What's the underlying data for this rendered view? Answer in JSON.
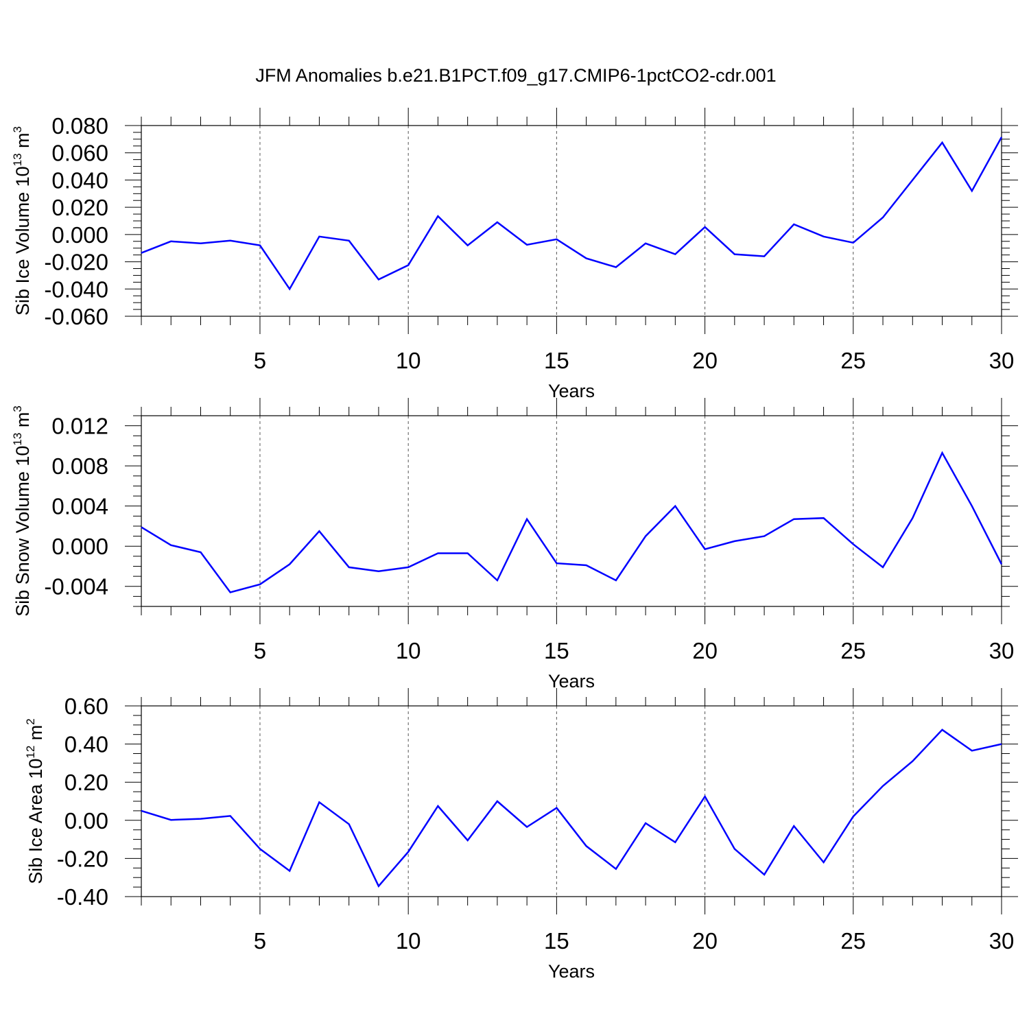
{
  "figure": {
    "title": "JFM Anomalies b.e21.B1PCT.f09_g17.CMIP6-1pctCO2-cdr.001"
  },
  "colors": {
    "line": "#0000ff",
    "axis": "#000000",
    "grid": "#555555"
  },
  "chart_data": [
    {
      "type": "line",
      "title": "JFM Anomalies b.e21.B1PCT.f09_g17.CMIP6-1pctCO2-cdr.001",
      "xlabel": "Years",
      "ylabel": {
        "text": "Sib Ice Volume 10",
        "sup": "13",
        "unit": " m",
        "unit_sup": "3"
      },
      "xlim": [
        1,
        30
      ],
      "ylim": [
        -0.06,
        0.08
      ],
      "xticks": [
        5,
        10,
        15,
        20,
        25,
        30
      ],
      "xtick_labels": [
        "5",
        "10",
        "15",
        "20",
        "25",
        "30"
      ],
      "yticks": [
        -0.06,
        -0.04,
        -0.02,
        0.0,
        0.02,
        0.04,
        0.06,
        0.08
      ],
      "ytick_labels": [
        "-0.060",
        "-0.040",
        "-0.020",
        "0.000",
        "0.020",
        "0.040",
        "0.060",
        "0.080"
      ],
      "yminor_step": 0.005,
      "grid": "vertical-dashed-at-major-x",
      "x": [
        1,
        2,
        3,
        4,
        5,
        6,
        7,
        8,
        9,
        10,
        11,
        12,
        13,
        14,
        15,
        16,
        17,
        18,
        19,
        20,
        21,
        22,
        23,
        24,
        25,
        26,
        27,
        28,
        29,
        30
      ],
      "series": [
        {
          "name": "Sib Ice Volume",
          "values": [
            -0.0135,
            -0.005,
            -0.0065,
            -0.0045,
            -0.008,
            -0.04,
            -0.0015,
            -0.0045,
            -0.033,
            -0.0225,
            0.0135,
            -0.008,
            0.009,
            -0.0075,
            -0.0035,
            -0.0175,
            -0.024,
            -0.0065,
            -0.0145,
            0.0055,
            -0.0145,
            -0.016,
            0.0075,
            -0.0015,
            -0.006,
            0.0125,
            0.04,
            0.0675,
            0.032,
            0.0715
          ]
        }
      ]
    },
    {
      "type": "line",
      "xlabel": "Years",
      "ylabel": {
        "text": "Sib Snow Volume 10",
        "sup": "13",
        "unit": " m",
        "unit_sup": "3"
      },
      "xlim": [
        1,
        30
      ],
      "ylim": [
        -0.006,
        0.013
      ],
      "xticks": [
        5,
        10,
        15,
        20,
        25,
        30
      ],
      "xtick_labels": [
        "5",
        "10",
        "15",
        "20",
        "25",
        "30"
      ],
      "yticks": [
        -0.004,
        0.0,
        0.004,
        0.008,
        0.012
      ],
      "ytick_labels": [
        "-0.004",
        "0.000",
        "0.004",
        "0.008",
        "0.012"
      ],
      "yminor_step": 0.001,
      "grid": "vertical-dashed-at-major-x",
      "x": [
        1,
        2,
        3,
        4,
        5,
        6,
        7,
        8,
        9,
        10,
        11,
        12,
        13,
        14,
        15,
        16,
        17,
        18,
        19,
        20,
        21,
        22,
        23,
        24,
        25,
        26,
        27,
        28,
        29,
        30
      ],
      "series": [
        {
          "name": "Sib Snow Volume",
          "values": [
            0.0019,
            0.0001,
            -0.0006,
            -0.0046,
            -0.0038,
            -0.0018,
            0.0015,
            -0.0021,
            -0.0025,
            -0.0021,
            -0.0007,
            -0.0007,
            -0.0034,
            0.0027,
            -0.0017,
            -0.0019,
            -0.0034,
            0.001,
            0.004,
            -0.0003,
            0.0005,
            0.001,
            0.0027,
            0.0028,
            0.0002,
            -0.0021,
            0.0028,
            0.0093,
            0.004,
            -0.0018
          ]
        }
      ]
    },
    {
      "type": "line",
      "xlabel": "Years",
      "ylabel": {
        "text": "Sib Ice Area 10",
        "sup": "12",
        "unit": " m",
        "unit_sup": "2"
      },
      "xlim": [
        1,
        30
      ],
      "ylim": [
        -0.4,
        0.6
      ],
      "xticks": [
        5,
        10,
        15,
        20,
        25,
        30
      ],
      "xtick_labels": [
        "5",
        "10",
        "15",
        "20",
        "25",
        "30"
      ],
      "yticks": [
        -0.4,
        -0.2,
        0.0,
        0.2,
        0.4,
        0.6
      ],
      "ytick_labels": [
        "-0.40",
        "-0.20",
        "0.00",
        "0.20",
        "0.40",
        "0.60"
      ],
      "yminor_step": 0.05,
      "grid": "vertical-dashed-at-major-x",
      "x": [
        1,
        2,
        3,
        4,
        5,
        6,
        7,
        8,
        9,
        10,
        11,
        12,
        13,
        14,
        15,
        16,
        17,
        18,
        19,
        20,
        21,
        22,
        23,
        24,
        25,
        26,
        27,
        28,
        29,
        30
      ],
      "series": [
        {
          "name": "Sib Ice Area",
          "values": [
            0.05,
            0.002,
            0.008,
            0.023,
            -0.15,
            -0.265,
            0.095,
            -0.02,
            -0.345,
            -0.165,
            0.075,
            -0.105,
            0.1,
            -0.035,
            0.065,
            -0.135,
            -0.255,
            -0.015,
            -0.115,
            0.125,
            -0.15,
            -0.285,
            -0.03,
            -0.22,
            0.02,
            0.18,
            0.31,
            0.475,
            0.365,
            0.4
          ]
        }
      ]
    }
  ]
}
